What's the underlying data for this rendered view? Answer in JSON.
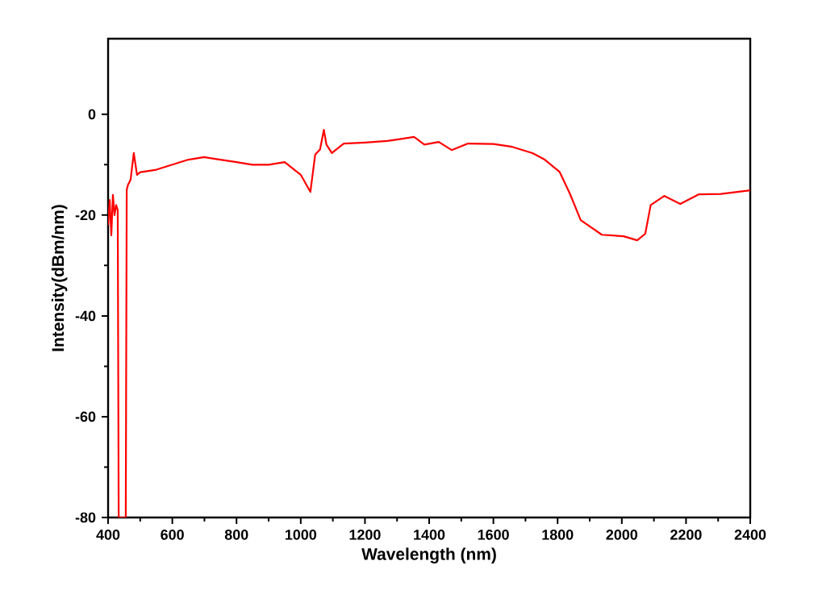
{
  "chart_data": {
    "type": "line",
    "xlabel": "Wavelength (nm)",
    "ylabel": "Intensity(dBm/nm)",
    "xlim": [
      400,
      2400
    ],
    "ylim": [
      -80,
      15
    ],
    "xticks": [
      400,
      600,
      800,
      1000,
      1200,
      1400,
      1600,
      1800,
      2000,
      2200,
      2400
    ],
    "yticks": [
      -80,
      -60,
      -40,
      -20,
      0
    ],
    "grid": false,
    "series": [
      {
        "color": "#ff0000",
        "x": [
          400,
          405,
          410,
          415,
          420,
          425,
          430,
          433,
          455,
          458,
          462,
          470,
          480,
          490,
          500,
          550,
          600,
          650,
          700,
          750,
          800,
          850,
          900,
          950,
          1000,
          1030,
          1045,
          1060,
          1072,
          1080,
          1097,
          1110,
          1134,
          1200,
          1269,
          1300,
          1353,
          1360,
          1385,
          1430,
          1470,
          1521,
          1600,
          1655,
          1722,
          1760,
          1806,
          1838,
          1872,
          1938,
          2006,
          2048,
          2073,
          2090,
          2132,
          2182,
          2239,
          2308,
          2400
        ],
        "values": [
          -22,
          -17,
          -24,
          -16,
          -20,
          -18,
          -19,
          -80,
          -80,
          -15,
          -14,
          -13,
          -7.7,
          -12,
          -11.5,
          -11,
          -10,
          -9,
          -8.5,
          -9,
          -9.5,
          -10,
          -10,
          -9.5,
          -12,
          -15.4,
          -8,
          -7,
          -3.1,
          -6,
          -7.7,
          -7,
          -5.8,
          -5.6,
          -5.3,
          -5,
          -4.5,
          -4.8,
          -6,
          -5.5,
          -7.1,
          -5.8,
          -5.9,
          -6.4,
          -7.7,
          -9,
          -11.4,
          -15.7,
          -21,
          -23.9,
          -24.2,
          -25,
          -23.7,
          -18,
          -16.2,
          -17.8,
          -15.9,
          -15.8,
          -15.1
        ]
      }
    ]
  }
}
